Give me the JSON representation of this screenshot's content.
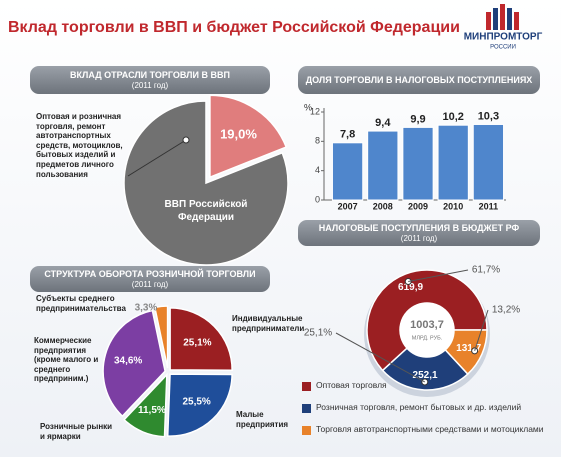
{
  "header": {
    "title": "Вклад торговли в ВВП и бюджет Российской Федерации",
    "logo": "МИНПРОМТОРГ",
    "logo_sub": "РОССИИ"
  },
  "chart_data": [
    {
      "type": "pie",
      "title": "ВКЛАД ОТРАСЛИ ТОРГОВЛИ В ВВП",
      "subtitle": "(2011 год)",
      "categories": [
        "Оптовая и розничная торговля, ремонт автотранспортных средств, мотоциклов, бытовых изделий и предметов личного пользования",
        "ВВП Российской Федерации"
      ],
      "values": [
        19.0,
        81.0
      ],
      "value_labels": [
        "19,0%",
        null
      ],
      "colors": [
        "#e07d7d",
        "#717171"
      ]
    },
    {
      "type": "bar",
      "title": "ДОЛЯ ТОРГОВЛИ В НАЛОГОВЫХ ПОСТУПЛЕНИЯХ",
      "y_label": "%",
      "categories": [
        "2007",
        "2008",
        "2009",
        "2010",
        "2011"
      ],
      "values": [
        7.8,
        9.4,
        9.9,
        10.2,
        10.3
      ],
      "value_labels": [
        "7,8",
        "9,4",
        "9,9",
        "10,2",
        "10,3"
      ],
      "color": "#4f86cc",
      "ylim": [
        0,
        12
      ],
      "yticks": [
        0,
        4,
        8,
        12
      ]
    },
    {
      "type": "pie",
      "title": "СТРУКТУРА ОБОРОТА РОЗНИЧНОЙ ТОРГОВЛИ",
      "subtitle": "(2011 год)",
      "categories": [
        "Индивидуальные предприниматели",
        "Малые предприятия",
        "Розничные рынки и ярмарки",
        "Коммерческие предприятия (кроме малого и среднего предприним.)",
        "Субъекты среднего предпринимательства"
      ],
      "values": [
        25.1,
        25.5,
        11.5,
        34.6,
        3.3
      ],
      "value_labels": [
        "25,1%",
        "25,5%",
        "11,5%",
        "34,6%",
        "3,3%"
      ],
      "colors": [
        "#9b1f22",
        "#1f4e9a",
        "#2f8a2f",
        "#7c3ea3",
        "#e8822a"
      ]
    },
    {
      "type": "donut",
      "title": "НАЛОГОВЫЕ ПОСТУПЛЕНИЯ В БЮДЖЕТ РФ",
      "subtitle": "(2011 год)",
      "categories": [
        "Оптовая торговля",
        "Розничная торговля, ремонт бытовых и др. изделий",
        "Торговля автотранспортными средствами и мотоциклами"
      ],
      "values": [
        619.9,
        252.1,
        131.7
      ],
      "value_labels": [
        "619,9",
        "252,1",
        "131,7"
      ],
      "share_labels": [
        "61,7%",
        "25,1%",
        "13,2%"
      ],
      "total": {
        "value": 1003.7,
        "label": "1003,7"
      },
      "total_unit": "МЛРД. РУБ.",
      "colors": [
        "#9b1f22",
        "#1f3f7a",
        "#e8822a"
      ]
    }
  ]
}
